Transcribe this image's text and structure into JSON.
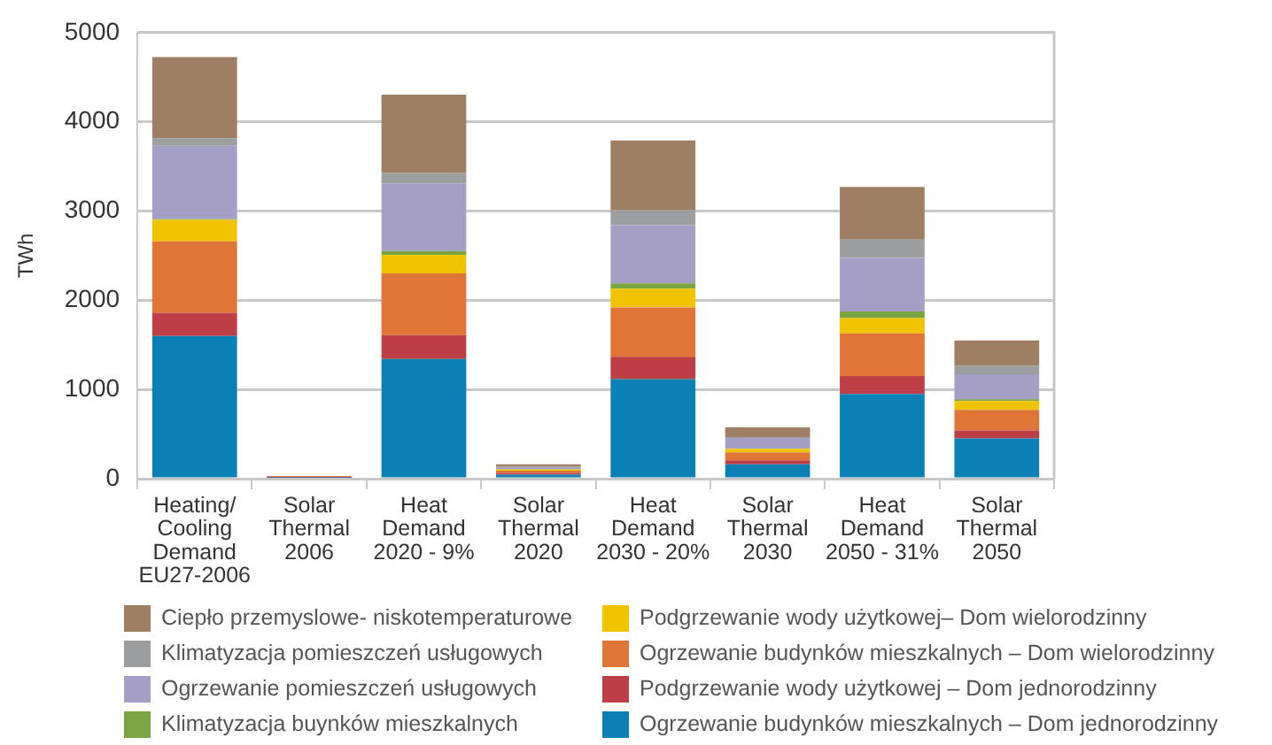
{
  "chart_data": {
    "type": "bar",
    "stacked": true,
    "ylabel": "TWh",
    "categories": [
      "Heating/\nCooling\nDemand\nEU27-2006",
      "Solar\nThermal\n2006",
      "Heat\nDemand\n2020 - 9%",
      "Solar\nThermal\n2020",
      "Heat\nDemand\n2030 - 20%",
      "Solar\nThermal\n2030",
      "Heat\nDemand\n2050 - 31%",
      "Solar\nThermal\n2050"
    ],
    "ylim": [
      0,
      5000
    ],
    "yticks": [
      0,
      1000,
      2000,
      3000,
      4000,
      5000
    ],
    "grid": "y",
    "legend": "bottom",
    "series": [
      {
        "name": "Ogrzewanie budynków mieszkalnych – Dom jednorodzinny",
        "color": "#0a80b4",
        "values": [
          1600,
          10,
          1340,
          45,
          1115,
          160,
          950,
          450
        ]
      },
      {
        "name": "Podgrzewanie wody użytkowej – Dom jednorodzinny",
        "color": "#bd3f45",
        "values": [
          260,
          15,
          270,
          20,
          250,
          45,
          200,
          90
        ]
      },
      {
        "name": "Ogrzewanie budynków mieszkalnych – Dom wielorodzinny",
        "color": "#e07538",
        "values": [
          800,
          5,
          690,
          25,
          555,
          90,
          480,
          230
        ]
      },
      {
        "name": "Podgrzewanie wody użytkowej– Dom wielorodzinny",
        "color": "#efc300",
        "values": [
          240,
          0,
          210,
          15,
          210,
          40,
          170,
          100
        ]
      },
      {
        "name": "Klimatyzacja buynków mieszkalnych",
        "color": "#7aa542",
        "values": [
          10,
          0,
          40,
          5,
          60,
          null,
          75,
          20
        ]
      },
      {
        "name": "Ogrzewanie pomieszczeń usługowych",
        "color": "#a59fc6",
        "values": [
          820,
          0,
          760,
          20,
          650,
          120,
          600,
          280
        ]
      },
      {
        "name": "Klimatyzacja pomieszczeń usługowych",
        "color": "#9c9e9f",
        "values": [
          85,
          0,
          115,
          5,
          170,
          10,
          205,
          95
        ]
      },
      {
        "name": "Ciepło przemyslowe- niskotemperaturowe",
        "color": "#9f7f64",
        "values": [
          910,
          0,
          880,
          25,
          780,
          110,
          590,
          285
        ]
      }
    ]
  }
}
